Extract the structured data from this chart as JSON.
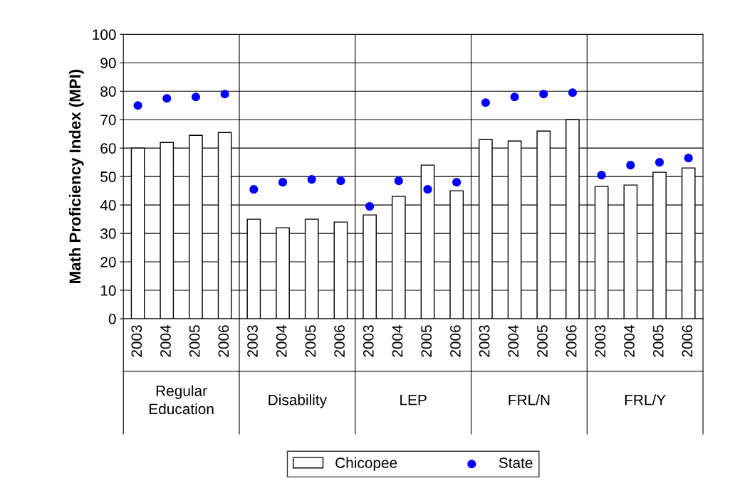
{
  "chart_data": {
    "type": "bar",
    "ylabel": "Math Proficiency Index (MPI)",
    "categories": [
      "2003",
      "2004",
      "2005",
      "2006",
      "2003",
      "2004",
      "2005",
      "2006",
      "2003",
      "2004",
      "2005",
      "2006",
      "2003",
      "2004",
      "2005",
      "2006",
      "2003",
      "2004",
      "2005",
      "2006"
    ],
    "annotations": [
      "Regular Education",
      "Disability",
      "LEP",
      "FRL/N",
      "FRL/Y"
    ],
    "series": [
      {
        "name": "Chicopee",
        "color": "#ffffff",
        "values": [
          60,
          62,
          64.5,
          65.5,
          35,
          32,
          35,
          34,
          36.5,
          43,
          54,
          45,
          63,
          62.5,
          66,
          70,
          46.5,
          47,
          51.5,
          53
        ]
      },
      {
        "name": "State",
        "type": "scatter",
        "color": "#0000ff",
        "values": [
          75,
          77.5,
          78,
          79,
          45.5,
          48,
          49,
          48.5,
          39.5,
          48.5,
          45.5,
          48,
          76,
          78,
          79,
          79.5,
          50.5,
          54,
          55,
          56.5
        ]
      }
    ],
    "ylim": [
      0,
      100
    ],
    "yticks": [
      0,
      10,
      20,
      30,
      40,
      50,
      60,
      70,
      80,
      90,
      100
    ],
    "grid": "y",
    "legend": "bottom",
    "marker": "circle"
  }
}
